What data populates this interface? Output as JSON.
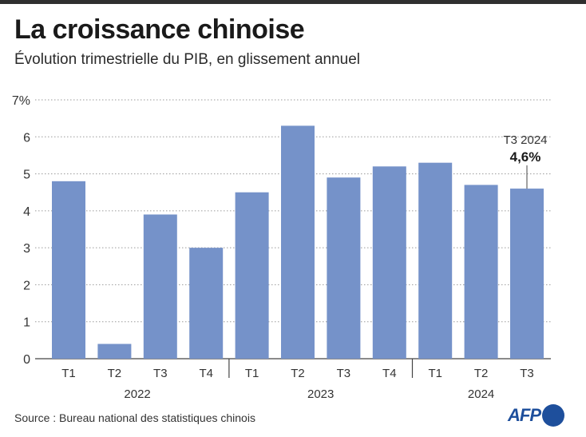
{
  "title": "La croissance chinoise",
  "subtitle": "Évolution trimestrielle du PIB, en glissement annuel",
  "source": "Source : Bureau national des statistiques chinois",
  "logo_text": "AFP",
  "colors": {
    "bar": "#7592c9",
    "grid": "#9a9a9a",
    "text": "#333333",
    "brand": "#1e4f9c"
  },
  "chart_data": {
    "type": "bar",
    "categories": [
      "T1",
      "T2",
      "T3",
      "T4",
      "T1",
      "T2",
      "T3",
      "T4",
      "T1",
      "T2",
      "T3"
    ],
    "groups": [
      {
        "label": "2022",
        "count": 4
      },
      {
        "label": "2023",
        "count": 4
      },
      {
        "label": "2024",
        "count": 3
      }
    ],
    "values": [
      4.8,
      0.4,
      3.9,
      3.0,
      4.5,
      6.3,
      4.9,
      5.2,
      5.3,
      4.7,
      4.6
    ],
    "ylim": [
      0,
      7
    ],
    "yticks": [
      "0",
      "1",
      "2",
      "3",
      "4",
      "5",
      "6",
      "7%"
    ],
    "grid": true,
    "annotation": {
      "index": 10,
      "label": "T3 2024",
      "value_label": "4,6%"
    }
  }
}
